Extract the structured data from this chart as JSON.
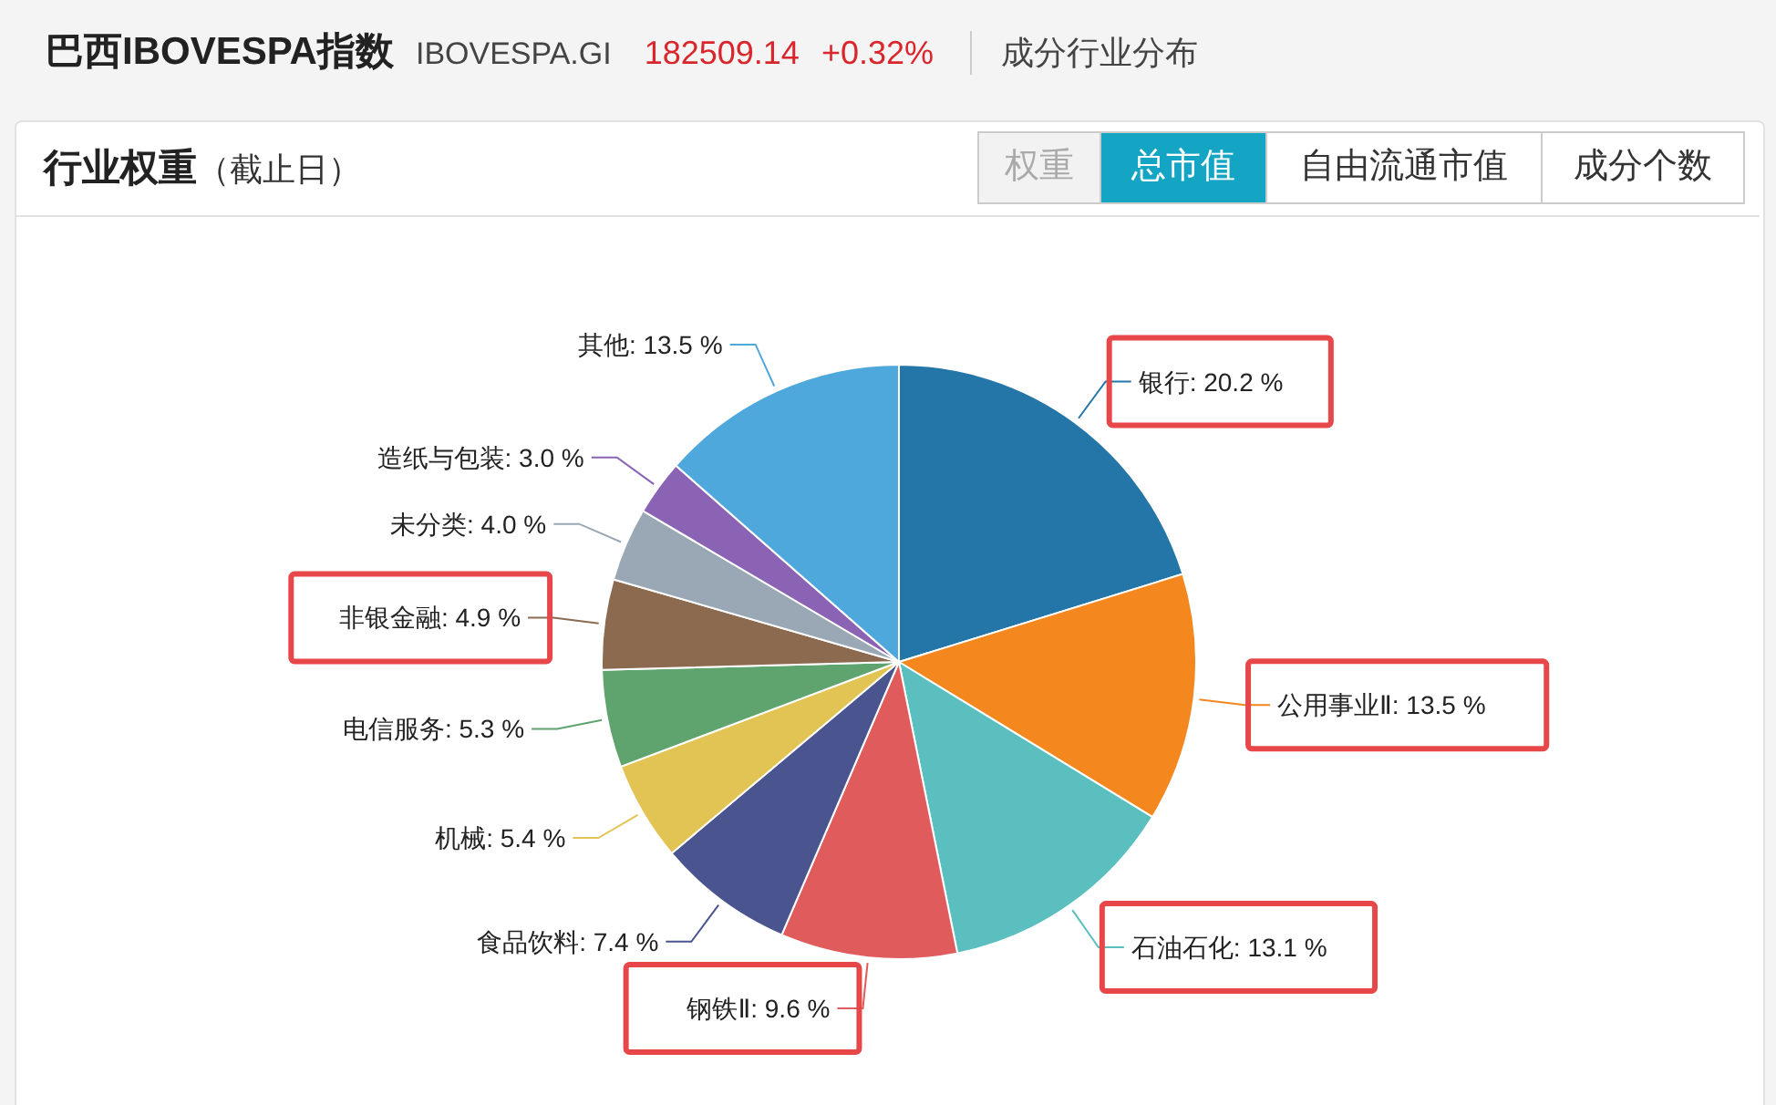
{
  "chart_data": {
    "type": "pie",
    "title": "行业权重",
    "subtitle": "（截止日）",
    "categories": [
      "银行",
      "公用事业Ⅱ",
      "石油石化",
      "钢铁Ⅱ",
      "食品饮料",
      "机械",
      "电信服务",
      "非银金融",
      "未分类",
      "造纸与包装",
      "其他"
    ],
    "values": [
      20.2,
      13.5,
      13.1,
      9.6,
      7.4,
      5.4,
      5.3,
      4.9,
      4.0,
      3.0,
      13.5
    ],
    "value_labels": [
      "20.2 %",
      "13.5 %",
      "13.1 %",
      "9.6 %",
      "7.4 %",
      "5.4 %",
      "5.3 %",
      "4.9 %",
      "4.0 %",
      "3.0 %",
      "13.5 %"
    ],
    "colors": [
      "#2475a8",
      "#f5871f",
      "#5bbfc0",
      "#e05c5c",
      "#4a5590",
      "#e2c454",
      "#5fa46f",
      "#8b6a50",
      "#9aa7b4",
      "#8a63b5",
      "#4fa8dc"
    ],
    "annotations": [
      "巴西IBOVESPA指数",
      "IBOVESPA.GI",
      "182509.14",
      "+0.32%",
      "成分行业分布",
      "权重",
      "总市值",
      "自由流通市值",
      "成分个数"
    ]
  }
}
